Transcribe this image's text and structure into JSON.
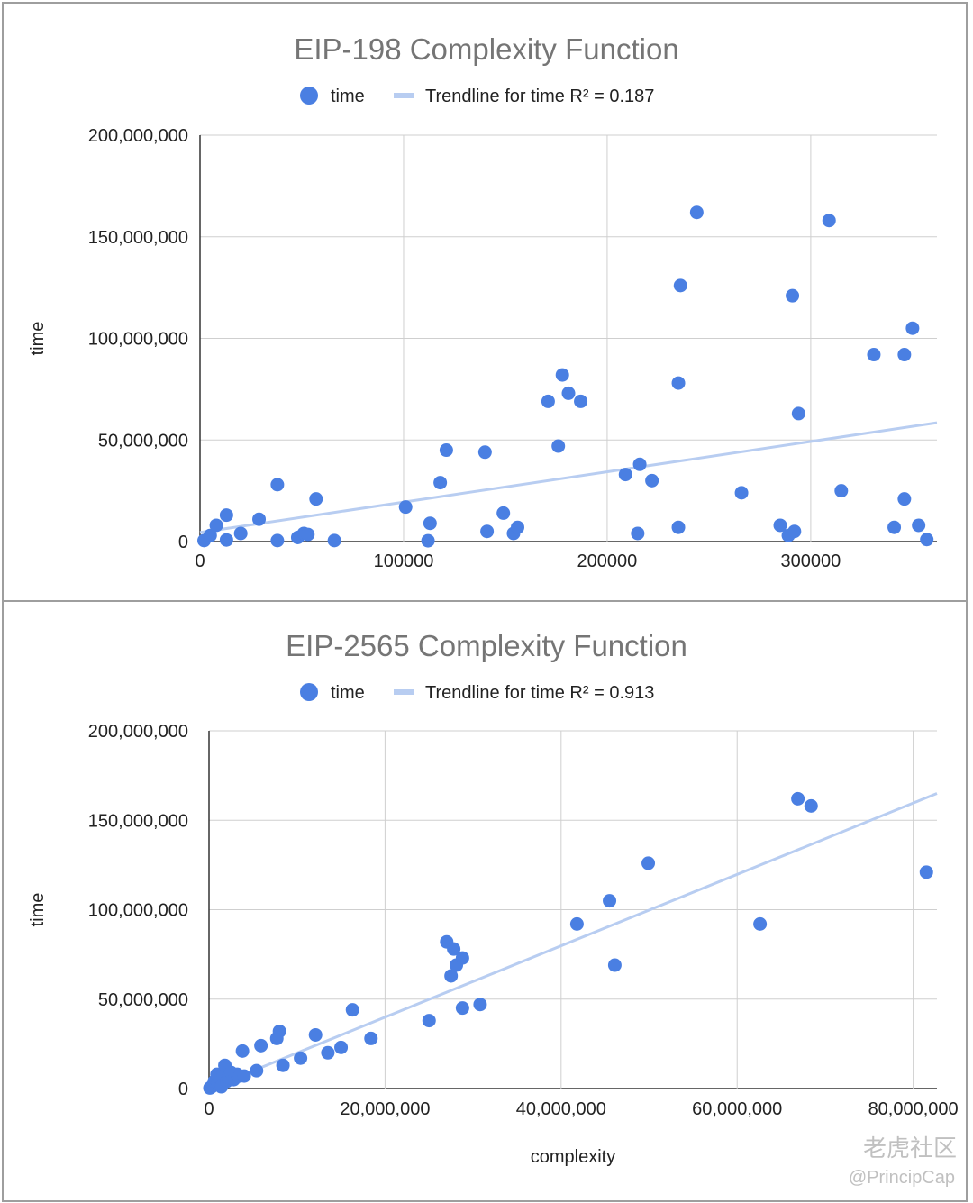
{
  "chart_data": [
    {
      "type": "scatter",
      "title": "EIP-198 Complexity Function",
      "xlabel": "",
      "ylabel": "time",
      "xlim": [
        0,
        362000
      ],
      "ylim": [
        0,
        200000000
      ],
      "xticks": [
        0,
        100000,
        200000,
        300000
      ],
      "xtick_labels": [
        "0",
        "100000",
        "200000",
        "300000"
      ],
      "yticks": [
        0,
        50000000,
        100000000,
        150000000,
        200000000
      ],
      "ytick_labels": [
        "0",
        "50,000,000",
        "100,000,000",
        "150,000,000",
        "200,000,000"
      ],
      "grid": true,
      "legend_position": "top",
      "legend": {
        "points_label": "time",
        "trend_label": "Trendline for time R² = 0.187"
      },
      "colors": {
        "points": "#4a7fe2",
        "trend": "#b8cdf1"
      },
      "trendline": {
        "from": [
          0,
          4500000
        ],
        "to": [
          362000,
          58500000
        ]
      },
      "series": [
        {
          "name": "time",
          "points": [
            [
              2000,
              500000
            ],
            [
              5000,
              3000000
            ],
            [
              8000,
              8000000
            ],
            [
              13000,
              13000000
            ],
            [
              13000,
              800000
            ],
            [
              20000,
              4000000
            ],
            [
              29000,
              11000000
            ],
            [
              38000,
              28000000
            ],
            [
              38000,
              500000
            ],
            [
              48000,
              2000000
            ],
            [
              51000,
              4000000
            ],
            [
              53000,
              3500000
            ],
            [
              57000,
              21000000
            ],
            [
              66000,
              500000
            ],
            [
              101000,
              17000000
            ],
            [
              112000,
              400000
            ],
            [
              113000,
              9000000
            ],
            [
              118000,
              29000000
            ],
            [
              121000,
              45000000
            ],
            [
              140000,
              44000000
            ],
            [
              141000,
              5000000
            ],
            [
              149000,
              14000000
            ],
            [
              154000,
              4000000
            ],
            [
              156000,
              7000000
            ],
            [
              171000,
              69000000
            ],
            [
              176000,
              47000000
            ],
            [
              178000,
              82000000
            ],
            [
              181000,
              73000000
            ],
            [
              187000,
              69000000
            ],
            [
              209000,
              33000000
            ],
            [
              216000,
              38000000
            ],
            [
              215000,
              4000000
            ],
            [
              222000,
              30000000
            ],
            [
              235000,
              7000000
            ],
            [
              235000,
              78000000
            ],
            [
              236000,
              126000000
            ],
            [
              244000,
              162000000
            ],
            [
              266000,
              24000000
            ],
            [
              285000,
              8000000
            ],
            [
              289000,
              3000000
            ],
            [
              291000,
              121000000
            ],
            [
              292000,
              5000000
            ],
            [
              294000,
              63000000
            ],
            [
              309000,
              158000000
            ],
            [
              315000,
              25000000
            ],
            [
              331000,
              92000000
            ],
            [
              341000,
              7000000
            ],
            [
              346000,
              21000000
            ],
            [
              346000,
              92000000
            ],
            [
              350000,
              105000000
            ],
            [
              353000,
              8000000
            ],
            [
              357000,
              1000000
            ]
          ]
        }
      ]
    },
    {
      "type": "scatter",
      "title": "EIP-2565 Complexity Function",
      "xlabel": "complexity",
      "ylabel": "time",
      "xlim": [
        0,
        82700000
      ],
      "ylim": [
        0,
        200000000
      ],
      "xticks": [
        0,
        20000000,
        40000000,
        60000000,
        80000000
      ],
      "xtick_labels": [
        "0",
        "20,000,000",
        "40,000,000",
        "60,000,000",
        "80,000,000"
      ],
      "yticks": [
        0,
        50000000,
        100000000,
        150000000,
        200000000
      ],
      "ytick_labels": [
        "0",
        "50,000,000",
        "100,000,000",
        "150,000,000",
        "200,000,000"
      ],
      "grid": true,
      "legend_position": "top",
      "legend": {
        "points_label": "time",
        "trend_label": "Trendline for time R² = 0.913"
      },
      "colors": {
        "points": "#4a7fe2",
        "trend": "#b8cdf1"
      },
      "trendline": {
        "from": [
          0,
          0
        ],
        "to": [
          82700000,
          165000000
        ]
      },
      "series": [
        {
          "name": "time",
          "points": [
            [
              100000,
              300000
            ],
            [
              300000,
              1000000
            ],
            [
              500000,
              2000000
            ],
            [
              600000,
              4000000
            ],
            [
              800000,
              5000000
            ],
            [
              900000,
              8000000
            ],
            [
              1000000,
              3000000
            ],
            [
              1200000,
              6000000
            ],
            [
              1400000,
              1000000
            ],
            [
              1600000,
              8000000
            ],
            [
              1800000,
              13000000
            ],
            [
              2000000,
              4000000
            ],
            [
              2200000,
              6000000
            ],
            [
              2500000,
              9000000
            ],
            [
              2800000,
              5000000
            ],
            [
              3200000,
              8000000
            ],
            [
              3500000,
              7000000
            ],
            [
              3800000,
              21000000
            ],
            [
              4000000,
              7000000
            ],
            [
              5400000,
              10000000
            ],
            [
              5900000,
              24000000
            ],
            [
              7700000,
              28000000
            ],
            [
              8000000,
              32000000
            ],
            [
              8400000,
              13000000
            ],
            [
              10400000,
              17000000
            ],
            [
              12100000,
              30000000
            ],
            [
              13500000,
              20000000
            ],
            [
              15000000,
              23000000
            ],
            [
              16300000,
              44000000
            ],
            [
              18400000,
              28000000
            ],
            [
              25000000,
              38000000
            ],
            [
              27000000,
              82000000
            ],
            [
              27500000,
              63000000
            ],
            [
              27800000,
              78000000
            ],
            [
              28100000,
              69000000
            ],
            [
              28800000,
              73000000
            ],
            [
              28800000,
              45000000
            ],
            [
              30800000,
              47000000
            ],
            [
              41800000,
              92000000
            ],
            [
              45500000,
              105000000
            ],
            [
              46100000,
              69000000
            ],
            [
              49900000,
              126000000
            ],
            [
              62600000,
              92000000
            ],
            [
              66900000,
              162000000
            ],
            [
              68400000,
              158000000
            ],
            [
              81500000,
              121000000
            ]
          ]
        }
      ]
    }
  ],
  "watermark": {
    "logo_text": "老虎社区",
    "handle": "@PrincipCap"
  }
}
